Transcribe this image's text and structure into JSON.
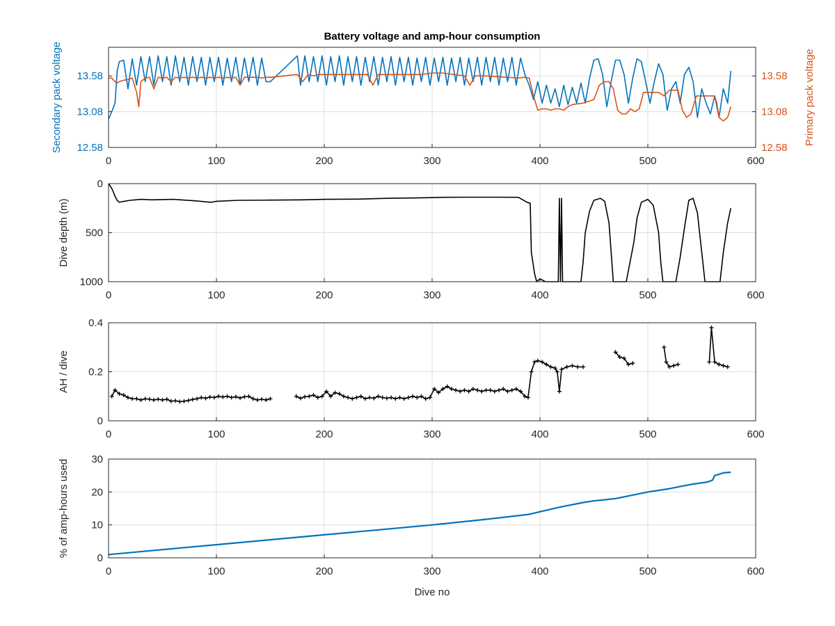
{
  "figure": {
    "title": "Battery voltage and amp-hour consumption",
    "colors": {
      "secondary": "#0072bd",
      "primary": "#d95319",
      "trace": "#000000",
      "axis": "#262626",
      "grid": "#dfdfdf"
    }
  },
  "chart_data": [
    {
      "type": "line",
      "title": "Battery voltage and amp-hour consumption",
      "xlabel": "",
      "ylabel": "Secondary pack voltage",
      "ylabel_right": "Primary pack voltage",
      "xlim": [
        0,
        600
      ],
      "ylim": [
        12.58,
        13.98
      ],
      "ylim_right": [
        12.58,
        13.98
      ],
      "xticks": [
        "0",
        "100",
        "200",
        "300",
        "400",
        "500",
        "600"
      ],
      "yticks": [
        "12.58",
        "13.08",
        "13.58"
      ],
      "yticks_right": [
        "12.58",
        "13.08",
        "13.58"
      ],
      "grid": true,
      "series": [
        {
          "name": "Secondary pack voltage",
          "axis": "left",
          "x": [
            0,
            3,
            6,
            8,
            10,
            14,
            18,
            22,
            26,
            30,
            34,
            38,
            42,
            46,
            50,
            54,
            58,
            62,
            66,
            70,
            74,
            78,
            82,
            86,
            90,
            94,
            98,
            102,
            106,
            110,
            114,
            118,
            122,
            126,
            130,
            134,
            138,
            142,
            146,
            150,
            175,
            178,
            182,
            186,
            190,
            194,
            198,
            202,
            206,
            210,
            214,
            218,
            222,
            226,
            230,
            234,
            238,
            242,
            246,
            250,
            254,
            258,
            262,
            266,
            270,
            274,
            278,
            282,
            286,
            290,
            294,
            298,
            302,
            306,
            310,
            314,
            318,
            322,
            326,
            330,
            334,
            338,
            342,
            346,
            350,
            354,
            358,
            362,
            366,
            370,
            374,
            378,
            382,
            386,
            390,
            394,
            398,
            402,
            406,
            410,
            414,
            418,
            422,
            426,
            430,
            434,
            438,
            442,
            446,
            450,
            454,
            458,
            462,
            466,
            470,
            474,
            478,
            482,
            486,
            490,
            494,
            498,
            502,
            506,
            510,
            514,
            518,
            522,
            526,
            530,
            534,
            538,
            542,
            546,
            550,
            554,
            558,
            562,
            566,
            570,
            574,
            577
          ],
          "y": [
            12.98,
            13.08,
            13.2,
            13.65,
            13.78,
            13.8,
            13.4,
            13.82,
            13.45,
            13.85,
            13.5,
            13.85,
            13.45,
            13.86,
            13.5,
            13.85,
            13.45,
            13.86,
            13.5,
            13.84,
            13.45,
            13.85,
            13.5,
            13.84,
            13.45,
            13.84,
            13.5,
            13.84,
            13.45,
            13.83,
            13.5,
            13.84,
            13.45,
            13.83,
            13.5,
            13.84,
            13.45,
            13.83,
            13.5,
            13.5,
            13.86,
            13.45,
            13.86,
            13.5,
            13.85,
            13.5,
            13.86,
            13.45,
            13.85,
            13.5,
            13.86,
            13.45,
            13.85,
            13.5,
            13.85,
            13.45,
            13.84,
            13.5,
            13.85,
            13.45,
            13.84,
            13.5,
            13.85,
            13.45,
            13.84,
            13.5,
            13.84,
            13.45,
            13.83,
            13.5,
            13.84,
            13.45,
            13.83,
            13.5,
            13.84,
            13.45,
            13.83,
            13.5,
            13.84,
            13.45,
            13.83,
            13.5,
            13.84,
            13.45,
            13.84,
            13.5,
            13.84,
            13.45,
            13.83,
            13.5,
            13.84,
            13.45,
            13.83,
            13.6,
            13.45,
            13.25,
            13.5,
            13.2,
            13.45,
            13.2,
            13.4,
            13.15,
            13.45,
            13.18,
            13.42,
            13.2,
            13.48,
            13.2,
            13.55,
            13.8,
            13.82,
            13.6,
            13.15,
            13.5,
            13.8,
            13.8,
            13.6,
            13.2,
            13.55,
            13.82,
            13.78,
            13.5,
            13.2,
            13.5,
            13.75,
            13.6,
            13.1,
            13.4,
            13.5,
            13.2,
            13.6,
            13.7,
            13.5,
            13.0,
            13.4,
            13.2,
            13.05,
            13.3,
            13.0,
            13.4,
            13.2,
            13.65
          ]
        },
        {
          "name": "Primary pack voltage",
          "axis": "right",
          "x": [
            0,
            3,
            6,
            8,
            10,
            14,
            18,
            22,
            26,
            28,
            30,
            34,
            38,
            42,
            46,
            50,
            54,
            58,
            62,
            66,
            70,
            74,
            78,
            82,
            86,
            90,
            94,
            98,
            102,
            106,
            110,
            114,
            118,
            122,
            126,
            130,
            134,
            138,
            142,
            146,
            150,
            175,
            180,
            185,
            190,
            195,
            200,
            210,
            220,
            230,
            240,
            245,
            250,
            260,
            270,
            280,
            290,
            300,
            310,
            320,
            330,
            335,
            340,
            350,
            360,
            370,
            380,
            385,
            390,
            394,
            398,
            402,
            406,
            410,
            414,
            418,
            422,
            426,
            430,
            440,
            450,
            455,
            460,
            464,
            468,
            472,
            476,
            480,
            484,
            488,
            492,
            496,
            500,
            505,
            510,
            515,
            520,
            524,
            528,
            532,
            536,
            540,
            545,
            550,
            554,
            558,
            562,
            564,
            566,
            570,
            574,
            577
          ],
          "y": [
            13.55,
            13.55,
            13.5,
            13.48,
            13.5,
            13.52,
            13.53,
            13.55,
            13.35,
            13.15,
            13.5,
            13.55,
            13.56,
            13.4,
            13.56,
            13.55,
            13.56,
            13.5,
            13.56,
            13.55,
            13.56,
            13.55,
            13.56,
            13.55,
            13.56,
            13.55,
            13.56,
            13.55,
            13.56,
            13.55,
            13.56,
            13.55,
            13.56,
            13.45,
            13.56,
            13.56,
            13.56,
            13.56,
            13.55,
            13.56,
            13.56,
            13.6,
            13.5,
            13.6,
            13.58,
            13.6,
            13.6,
            13.6,
            13.6,
            13.6,
            13.6,
            13.45,
            13.6,
            13.6,
            13.6,
            13.6,
            13.6,
            13.62,
            13.62,
            13.6,
            13.58,
            13.45,
            13.58,
            13.58,
            13.57,
            13.56,
            13.55,
            13.56,
            13.55,
            13.3,
            13.1,
            13.12,
            13.12,
            13.1,
            13.12,
            13.12,
            13.1,
            13.15,
            13.18,
            13.2,
            13.25,
            13.45,
            13.5,
            13.5,
            13.4,
            13.1,
            13.05,
            13.05,
            13.12,
            13.08,
            13.12,
            13.35,
            13.35,
            13.35,
            13.35,
            13.3,
            13.38,
            13.38,
            13.38,
            13.1,
            13.0,
            13.05,
            13.3,
            13.3,
            13.3,
            13.3,
            13.3,
            13.2,
            13.0,
            12.95,
            13.0,
            13.15
          ]
        }
      ]
    },
    {
      "type": "line",
      "title": "",
      "xlabel": "",
      "ylabel": "Dive depth (m)",
      "xlim": [
        0,
        600
      ],
      "ylim": [
        0,
        1000
      ],
      "y_reversed": true,
      "xticks": [
        "0",
        "100",
        "200",
        "300",
        "400",
        "500",
        "600"
      ],
      "yticks": [
        "0",
        "500",
        "1000"
      ],
      "grid": true,
      "series": [
        {
          "x": [
            0,
            3,
            5,
            6,
            8,
            10,
            12,
            20,
            30,
            40,
            60,
            80,
            95,
            100,
            120,
            150,
            180,
            200,
            230,
            260,
            290,
            310,
            330,
            360,
            380,
            388,
            391,
            392,
            395,
            397,
            400,
            405,
            410,
            415,
            417,
            418,
            419,
            420,
            421,
            422,
            423,
            428,
            433,
            438,
            440,
            442,
            446,
            450,
            456,
            460,
            464,
            466,
            468,
            473,
            480,
            487,
            490,
            494,
            500,
            505,
            510,
            512,
            514,
            520,
            526,
            530,
            534,
            538,
            542,
            546,
            550,
            553,
            560,
            567,
            570,
            574,
            577
          ],
          "y": [
            0,
            50,
            100,
            130,
            170,
            190,
            185,
            170,
            160,
            165,
            160,
            175,
            190,
            180,
            170,
            168,
            165,
            160,
            158,
            150,
            145,
            140,
            138,
            138,
            140,
            190,
            200,
            700,
            920,
            1000,
            970,
            1000,
            1000,
            1000,
            1000,
            150,
            1000,
            150,
            1000,
            1000,
            1000,
            1000,
            1000,
            1000,
            800,
            500,
            280,
            170,
            150,
            180,
            400,
            700,
            1000,
            1000,
            1000,
            600,
            350,
            190,
            160,
            220,
            500,
            800,
            1000,
            1000,
            1000,
            750,
            450,
            170,
            150,
            300,
            700,
            1000,
            1000,
            1000,
            700,
            400,
            250
          ]
        }
      ]
    },
    {
      "type": "scatter",
      "title": "",
      "xlabel": "",
      "ylabel": "AH / dive",
      "xlim": [
        0,
        600
      ],
      "ylim": [
        0,
        0.4
      ],
      "xticks": [
        "0",
        "100",
        "200",
        "300",
        "400",
        "500",
        "600"
      ],
      "yticks": [
        "0",
        "0.2",
        "0.4"
      ],
      "grid": true,
      "series": [
        {
          "x": [
            3,
            6,
            10,
            14,
            18,
            22,
            26,
            30,
            34,
            38,
            42,
            46,
            50,
            54,
            58,
            62,
            66,
            70,
            74,
            78,
            82,
            86,
            90,
            94,
            98,
            102,
            106,
            110,
            114,
            118,
            122,
            126,
            130,
            134,
            138,
            142,
            146,
            150,
            174,
            178,
            182,
            186,
            190,
            194,
            198,
            202,
            206,
            210,
            214,
            218,
            222,
            226,
            230,
            234,
            238,
            242,
            246,
            250,
            254,
            258,
            262,
            266,
            270,
            274,
            278,
            282,
            286,
            290,
            294,
            298,
            302,
            306,
            310,
            314,
            318,
            322,
            326,
            330,
            334,
            338,
            342,
            346,
            350,
            354,
            358,
            362,
            366,
            370,
            374,
            378,
            382,
            386,
            389,
            392,
            395,
            398,
            402,
            406,
            410,
            414,
            416,
            418,
            420,
            425,
            430,
            435,
            440,
            470,
            474,
            478,
            482,
            486,
            515,
            517,
            520,
            524,
            528,
            557,
            559,
            562,
            566,
            570,
            574
          ],
          "y": [
            0.1,
            0.125,
            0.11,
            0.105,
            0.095,
            0.09,
            0.09,
            0.085,
            0.09,
            0.088,
            0.085,
            0.088,
            0.085,
            0.088,
            0.08,
            0.082,
            0.078,
            0.08,
            0.083,
            0.087,
            0.09,
            0.095,
            0.092,
            0.097,
            0.095,
            0.1,
            0.097,
            0.1,
            0.095,
            0.098,
            0.093,
            0.098,
            0.1,
            0.09,
            0.085,
            0.088,
            0.085,
            0.09,
            0.1,
            0.092,
            0.098,
            0.1,
            0.105,
            0.095,
            0.1,
            0.12,
            0.1,
            0.115,
            0.11,
            0.1,
            0.095,
            0.09,
            0.095,
            0.1,
            0.09,
            0.095,
            0.092,
            0.1,
            0.095,
            0.092,
            0.095,
            0.09,
            0.095,
            0.09,
            0.095,
            0.1,
            0.095,
            0.1,
            0.09,
            0.095,
            0.13,
            0.115,
            0.13,
            0.14,
            0.13,
            0.125,
            0.12,
            0.125,
            0.12,
            0.13,
            0.125,
            0.12,
            0.125,
            0.125,
            0.12,
            0.125,
            0.13,
            0.12,
            0.125,
            0.13,
            0.12,
            0.1,
            0.095,
            0.2,
            0.24,
            0.245,
            0.24,
            0.23,
            0.22,
            0.215,
            0.2,
            0.12,
            0.21,
            0.22,
            0.225,
            0.22,
            0.22,
            0.28,
            0.26,
            0.255,
            0.23,
            0.235,
            0.3,
            0.24,
            0.22,
            0.225,
            0.23,
            0.24,
            0.38,
            0.24,
            0.23,
            0.225,
            0.22
          ]
        }
      ]
    },
    {
      "type": "line",
      "title": "",
      "xlabel": "Dive no",
      "ylabel": "% of amp-hours used",
      "xlim": [
        0,
        600
      ],
      "ylim": [
        0,
        30
      ],
      "xticks": [
        "0",
        "100",
        "200",
        "300",
        "400",
        "500",
        "600"
      ],
      "yticks": [
        "0",
        "10",
        "20",
        "30"
      ],
      "grid": true,
      "series": [
        {
          "x": [
            0,
            50,
            100,
            150,
            200,
            250,
            300,
            350,
            390,
            400,
            420,
            440,
            450,
            470,
            490,
            500,
            520,
            540,
            555,
            560,
            562,
            570,
            577
          ],
          "y": [
            1,
            2.5,
            4,
            5.5,
            7,
            8.5,
            10,
            11.7,
            13.2,
            14,
            15.5,
            16.8,
            17.3,
            18,
            19.3,
            20,
            21,
            22.3,
            23,
            23.6,
            25,
            25.8,
            26
          ]
        }
      ]
    }
  ]
}
